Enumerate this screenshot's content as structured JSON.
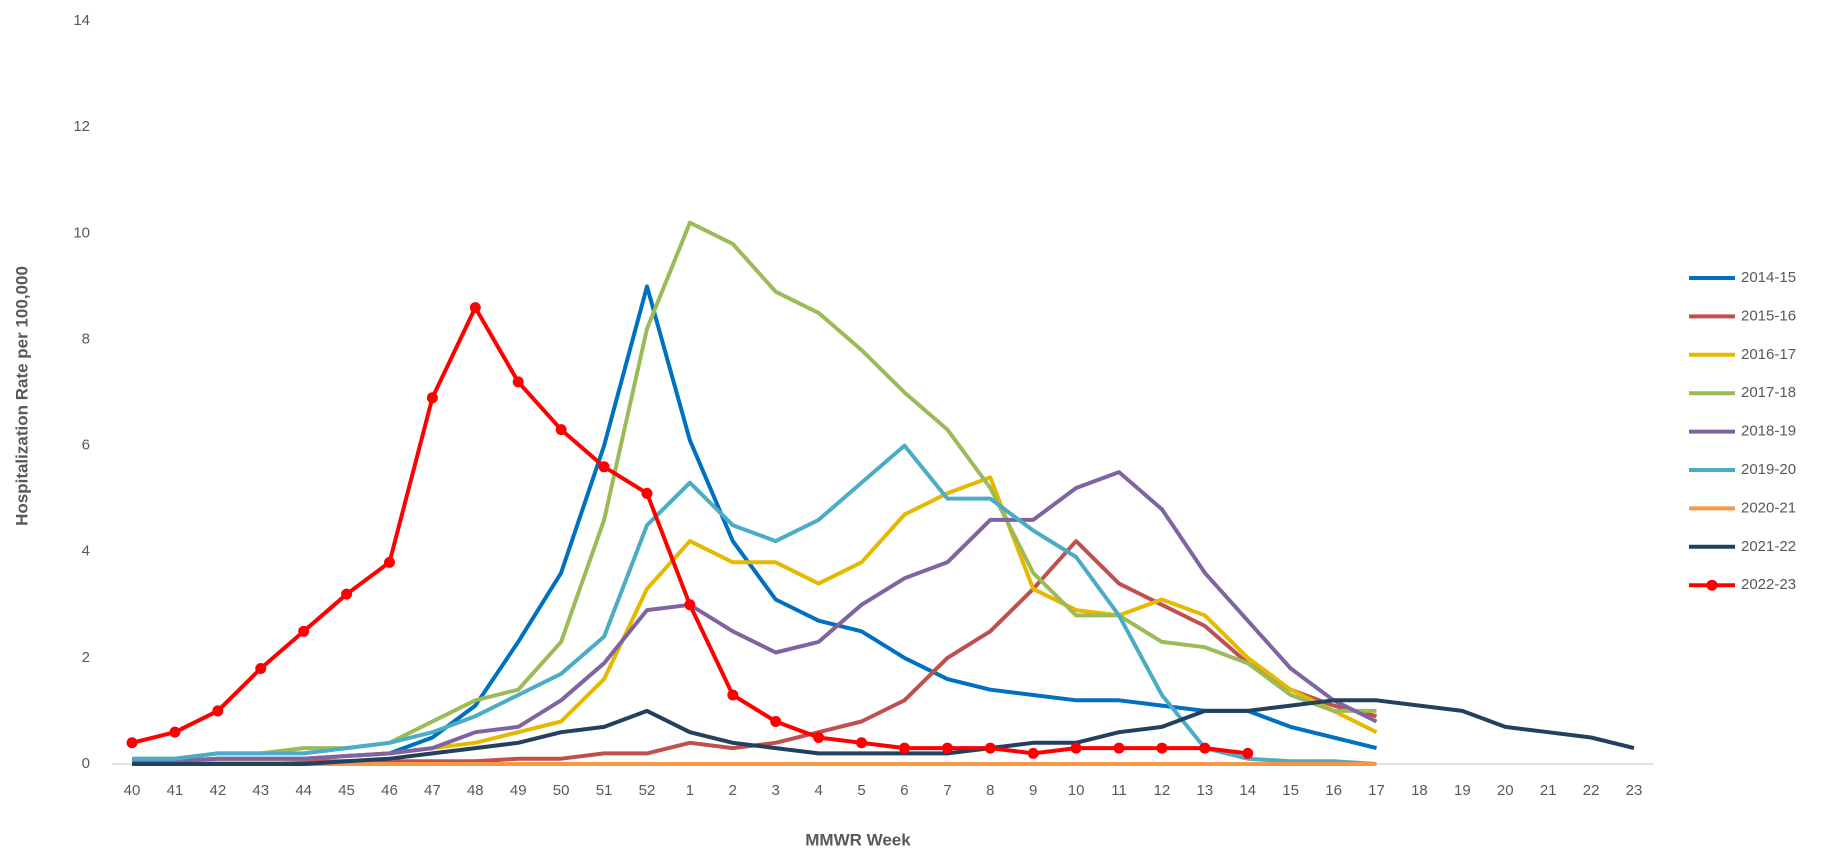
{
  "chart_data": {
    "type": "line",
    "x_label": "MMWR Week",
    "y_label": "Hospitalization  Rate per 100,000",
    "categories": [
      "40",
      "41",
      "42",
      "43",
      "44",
      "45",
      "46",
      "47",
      "48",
      "49",
      "50",
      "51",
      "52",
      "1",
      "2",
      "3",
      "4",
      "5",
      "6",
      "7",
      "8",
      "9",
      "10",
      "11",
      "12",
      "13",
      "14",
      "15",
      "16",
      "17",
      "18",
      "19",
      "20",
      "21",
      "22",
      "23"
    ],
    "ylim": [
      0,
      14
    ],
    "yticks": [
      0,
      2,
      4,
      6,
      8,
      10,
      12,
      14
    ],
    "grid": false,
    "legend": "right",
    "series": [
      {
        "name": "2014-15",
        "color": "#0070c0",
        "values": [
          0.05,
          0.05,
          0.1,
          0.1,
          0.1,
          0.15,
          0.2,
          0.5,
          1.1,
          2.3,
          3.6,
          6.0,
          9.0,
          6.1,
          4.2,
          3.1,
          2.7,
          2.5,
          2.0,
          1.6,
          1.4,
          1.3,
          1.2,
          1.2,
          1.1,
          1.0,
          1.0,
          0.7,
          0.5,
          0.3,
          null,
          null,
          null,
          null,
          null,
          null
        ]
      },
      {
        "name": "2015-16",
        "color": "#c0504d",
        "values": [
          0,
          0,
          0.05,
          0.05,
          0.05,
          0.05,
          0.05,
          0.05,
          0.05,
          0.1,
          0.1,
          0.2,
          0.2,
          0.4,
          0.3,
          0.4,
          0.6,
          0.8,
          1.2,
          2.0,
          2.5,
          3.3,
          4.2,
          3.4,
          3.0,
          2.6,
          1.9,
          1.4,
          1.1,
          0.9,
          null,
          null,
          null,
          null,
          null,
          null
        ]
      },
      {
        "name": "2016-17",
        "color": "#e6b800",
        "values": [
          0.05,
          0.05,
          0.05,
          0.05,
          0.1,
          0.15,
          0.2,
          0.3,
          0.4,
          0.6,
          0.8,
          1.6,
          3.3,
          4.2,
          3.8,
          3.8,
          3.4,
          3.8,
          4.7,
          5.1,
          5.4,
          3.3,
          2.9,
          2.8,
          3.1,
          2.8,
          2.0,
          1.4,
          1.0,
          0.6,
          null,
          null,
          null,
          null,
          null,
          null
        ]
      },
      {
        "name": "2017-18",
        "color": "#9bbb59",
        "values": [
          0.1,
          0.1,
          0.2,
          0.2,
          0.3,
          0.3,
          0.4,
          0.8,
          1.2,
          1.4,
          2.3,
          4.6,
          8.2,
          10.2,
          9.8,
          8.9,
          8.5,
          7.8,
          7.0,
          6.3,
          5.2,
          3.6,
          2.8,
          2.8,
          2.3,
          2.2,
          1.9,
          1.3,
          1.0,
          1.0,
          null,
          null,
          null,
          null,
          null,
          null
        ]
      },
      {
        "name": "2018-19",
        "color": "#8064a2",
        "values": [
          0.05,
          0.05,
          0.1,
          0.1,
          0.1,
          0.15,
          0.2,
          0.3,
          0.6,
          0.7,
          1.2,
          1.9,
          2.9,
          3.0,
          2.5,
          2.1,
          2.3,
          3.0,
          3.5,
          3.8,
          4.6,
          4.6,
          5.2,
          5.5,
          4.8,
          3.6,
          2.7,
          1.8,
          1.2,
          0.8,
          null,
          null,
          null,
          null,
          null,
          null
        ]
      },
      {
        "name": "2019-20",
        "color": "#4bacc6",
        "values": [
          0.1,
          0.1,
          0.2,
          0.2,
          0.2,
          0.3,
          0.4,
          0.6,
          0.9,
          1.3,
          1.7,
          2.4,
          4.5,
          5.3,
          4.5,
          4.2,
          4.6,
          5.3,
          6.0,
          5.0,
          5.0,
          4.4,
          3.9,
          2.8,
          1.3,
          0.3,
          0.1,
          0.05,
          0.05,
          0,
          null,
          null,
          null,
          null,
          null,
          null
        ]
      },
      {
        "name": "2020-21",
        "color": "#f79646",
        "values": [
          0,
          0,
          0,
          0,
          0,
          0,
          0,
          0,
          0,
          0,
          0,
          0,
          0,
          0,
          0,
          0,
          0,
          0,
          0,
          0,
          0,
          0,
          0,
          0,
          0,
          0,
          0,
          0,
          0,
          0,
          null,
          null,
          null,
          null,
          null,
          null
        ]
      },
      {
        "name": "2021-22",
        "color": "#243f60",
        "values": [
          0,
          0,
          0,
          0,
          0,
          0.05,
          0.1,
          0.2,
          0.3,
          0.4,
          0.6,
          0.7,
          1.0,
          0.6,
          0.4,
          0.3,
          0.2,
          0.2,
          0.2,
          0.2,
          0.3,
          0.4,
          0.4,
          0.6,
          0.7,
          1.0,
          1.0,
          1.1,
          1.2,
          1.2,
          1.1,
          1.0,
          0.7,
          0.6,
          0.5,
          0.3
        ]
      },
      {
        "name": "2022-23",
        "color": "#ff0000",
        "markers": true,
        "values": [
          0.4,
          0.6,
          1.0,
          1.8,
          2.5,
          3.2,
          3.8,
          6.9,
          8.6,
          7.2,
          6.3,
          5.6,
          5.1,
          3.0,
          1.3,
          0.8,
          0.5,
          0.4,
          0.3,
          0.3,
          0.3,
          0.2,
          0.3,
          0.3,
          0.3,
          0.3,
          0.2,
          null,
          null,
          null,
          null,
          null,
          null,
          null,
          null,
          null
        ]
      }
    ]
  }
}
